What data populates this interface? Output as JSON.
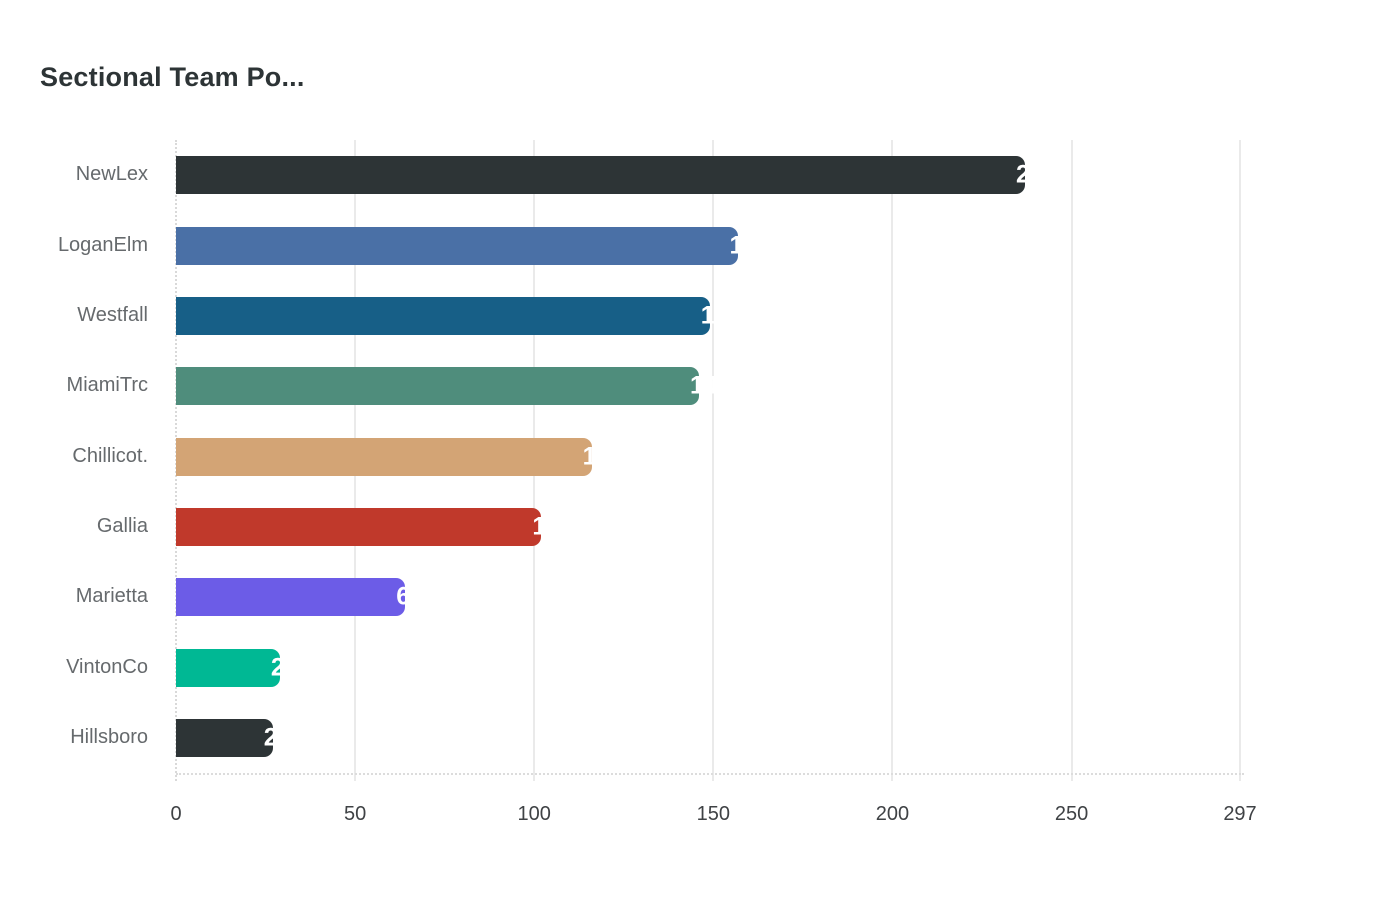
{
  "chart_data": {
    "type": "bar",
    "orientation": "horizontal",
    "title": "Sectional Team Po...",
    "categories": [
      "NewLex",
      "LoganElm",
      "Westfall",
      "MiamiTrc",
      "Chillicot.",
      "Gallia",
      "Marietta",
      "VintonCo",
      "Hillsboro"
    ],
    "values": [
      237,
      157,
      149,
      146,
      116,
      102,
      64,
      29,
      27
    ],
    "bar_colors": [
      "#2d3436",
      "#4a70a6",
      "#175f87",
      "#4f8d7c",
      "#d3a475",
      "#c0392b",
      "#6c5ce7",
      "#00b894",
      "#2d3436"
    ],
    "x_ticks": [
      0,
      50,
      100,
      150,
      200,
      250,
      297
    ],
    "xlim": [
      0,
      297
    ],
    "xlabel": "",
    "ylabel": "",
    "grid": "vertical",
    "legend": "none",
    "value_labels": "white-at-bar-end"
  },
  "colors": {
    "background": "#ffffff",
    "title": "#2d3436",
    "category_label": "#666a6d",
    "tick_label": "#3f4245",
    "gridline": "#eaeaea",
    "axis_dotted": "#d9d9d9",
    "value_label": "#ffffff"
  }
}
